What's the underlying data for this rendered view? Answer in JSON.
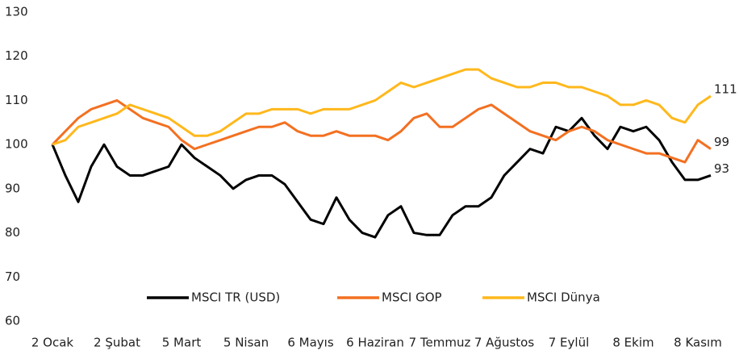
{
  "chart_data": {
    "type": "line",
    "categories": [
      "2 Ocak",
      null,
      null,
      null,
      null,
      "2 Şubat",
      null,
      null,
      null,
      null,
      "5 Mart",
      null,
      null,
      null,
      null,
      "5 Nisan",
      null,
      null,
      null,
      null,
      "6 Mayıs",
      null,
      null,
      null,
      null,
      "6 Haziran",
      null,
      null,
      null,
      null,
      "7 Temmuz",
      null,
      null,
      null,
      null,
      "7 Ağustos",
      null,
      null,
      null,
      null,
      "7 Eylül",
      null,
      null,
      null,
      null,
      "8 Ekim",
      null,
      null,
      null,
      null,
      "8 Kasım",
      null
    ],
    "series": [
      {
        "name": "MSCI TR (USD)",
        "color": "#000000",
        "values": [
          100,
          93,
          87,
          95,
          100,
          95,
          93,
          93,
          94,
          95,
          100,
          97,
          95,
          93,
          90,
          92,
          93,
          93,
          91,
          87,
          83,
          82,
          88,
          83,
          80,
          79,
          84,
          86,
          80,
          79.5,
          79.5,
          84,
          86,
          86,
          88,
          93,
          96,
          99,
          98,
          104,
          103,
          106,
          102,
          99,
          104,
          103,
          104,
          101,
          96,
          92,
          92,
          93
        ]
      },
      {
        "name": "MSCI GOP",
        "color": "#f37021",
        "values": [
          100,
          103,
          106,
          108,
          109,
          110,
          108,
          106,
          105,
          104,
          101,
          99,
          100,
          101,
          102,
          103,
          104,
          104,
          105,
          103,
          102,
          102,
          103,
          102,
          102,
          102,
          101,
          103,
          106,
          107,
          104,
          104,
          106,
          108,
          109,
          107,
          105,
          103,
          102,
          101,
          103,
          104,
          103,
          101,
          100,
          99,
          98,
          98,
          97,
          96,
          101,
          99
        ]
      },
      {
        "name": "MSCI Dünya",
        "color": "#ffb81c",
        "values": [
          100,
          101,
          104,
          105,
          106,
          107,
          109,
          108,
          107,
          106,
          104,
          102,
          102,
          103,
          105,
          107,
          107,
          108,
          108,
          108,
          107,
          108,
          108,
          108,
          109,
          110,
          112,
          114,
          113,
          114,
          115,
          116,
          117,
          117,
          115,
          114,
          113,
          113,
          114,
          114,
          113,
          113,
          112,
          111,
          109,
          109,
          110,
          109,
          106,
          105,
          109,
          111
        ]
      }
    ],
    "ylim": [
      60,
      130
    ],
    "yticks": [
      60,
      70,
      80,
      90,
      100,
      110,
      120,
      130
    ],
    "grid": false,
    "legend": "bottom"
  }
}
